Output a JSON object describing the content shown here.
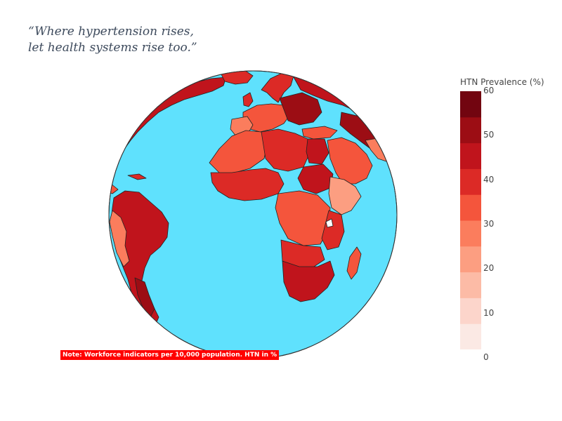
{
  "header": {
    "title_line1": "“Where hypertension rises,",
    "title_line2": "let health systems rise too.”"
  },
  "note": "Note: Workforce indicators per 10,000 population. HTN in %",
  "colorbar": {
    "title": "HTN Prevalence (%)",
    "min": 0,
    "max": 60,
    "ticks": [
      "60",
      "50",
      "40",
      "30",
      "20",
      "10",
      "0"
    ],
    "colors": [
      "#fbe9e4",
      "#fcd5cb",
      "#fcbba6",
      "#fc9e81",
      "#fb7d5d",
      "#f4553c",
      "#dc2a26",
      "#c0141c",
      "#9c0d14",
      "#720510"
    ]
  },
  "map": {
    "projection": "orthographic",
    "ocean_color": "#5fe1fd",
    "land_color": "#d9362b",
    "no_data_color": "#ffffff"
  }
}
